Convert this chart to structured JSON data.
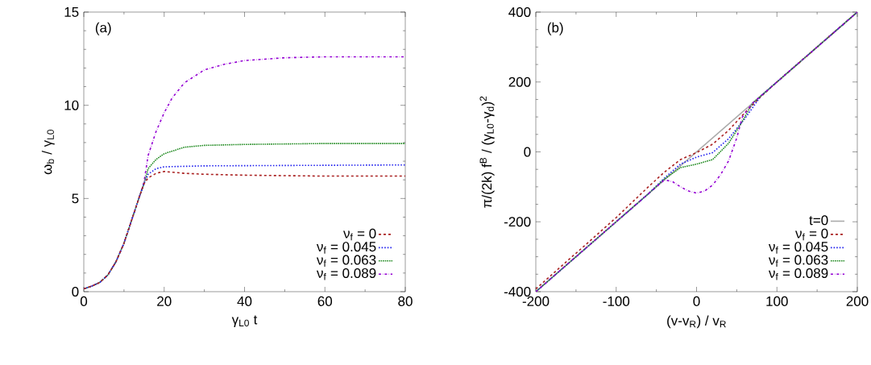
{
  "chart_data": [
    {
      "type": "line",
      "xlabel": "γ$_{L0}$ t",
      "ylabel": "ω$_{b}$ / γ$_{L0}$",
      "annotations": [
        "(a)"
      ],
      "xlim": [
        0,
        80
      ],
      "ylim": [
        0,
        15
      ],
      "xticks": [
        0,
        20,
        40,
        60,
        80
      ],
      "yticks": [
        0,
        5,
        10,
        15
      ],
      "legend": "bottom right",
      "grid": false,
      "series": [
        {
          "name": "ν$_{f}$ = 0",
          "color": "#aa2222",
          "line_style": "dashed",
          "x": [
            0,
            2,
            4,
            6,
            8,
            10,
            12,
            14,
            15,
            16,
            18,
            20,
            25,
            30,
            40,
            60,
            80
          ],
          "values": [
            0.15,
            0.3,
            0.5,
            0.9,
            1.6,
            2.6,
            3.9,
            5.2,
            5.8,
            6.1,
            6.35,
            6.45,
            6.35,
            6.3,
            6.25,
            6.2,
            6.2
          ]
        },
        {
          "name": "ν$_{f}$ = 0.045",
          "color": "#2222ee",
          "line_style": "dotted",
          "x": [
            0,
            2,
            4,
            6,
            8,
            10,
            12,
            14,
            15,
            16,
            18,
            20,
            30,
            80
          ],
          "values": [
            0.15,
            0.3,
            0.5,
            0.9,
            1.6,
            2.6,
            3.9,
            5.2,
            5.8,
            6.3,
            6.6,
            6.7,
            6.75,
            6.8
          ]
        },
        {
          "name": "ν$_{f}$ = 0.063",
          "color": "#228b22",
          "line_style": "densely dotted",
          "x": [
            0,
            2,
            4,
            6,
            8,
            10,
            12,
            14,
            15,
            16,
            18,
            20,
            25,
            30,
            40,
            60,
            80
          ],
          "values": [
            0.15,
            0.3,
            0.5,
            0.9,
            1.6,
            2.6,
            3.9,
            5.2,
            5.8,
            6.6,
            7.1,
            7.4,
            7.75,
            7.85,
            7.9,
            7.95,
            7.95
          ]
        },
        {
          "name": "ν$_{f}$ = 0.089",
          "color": "#9400d3",
          "line_style": "dash dot",
          "x": [
            0,
            2,
            4,
            6,
            8,
            10,
            12,
            14,
            15,
            16,
            18,
            20,
            22,
            25,
            30,
            35,
            40,
            50,
            60,
            80
          ],
          "values": [
            0.15,
            0.3,
            0.5,
            0.9,
            1.6,
            2.6,
            3.9,
            5.2,
            5.9,
            7.3,
            8.6,
            9.6,
            10.4,
            11.2,
            11.9,
            12.2,
            12.4,
            12.55,
            12.6,
            12.6
          ]
        }
      ]
    },
    {
      "type": "line",
      "xlabel": "(v-v$_{R}$) / v$_{R}$",
      "ylabel": "π/(2k) f$^{B}$ / (γ$_{L0}$-γ$_{d}$)$^{2}$",
      "annotations": [
        "(b)"
      ],
      "xlim": [
        -200,
        200
      ],
      "ylim": [
        -400,
        400
      ],
      "xticks": [
        -200,
        -100,
        0,
        100,
        200
      ],
      "yticks": [
        -400,
        -200,
        0,
        200,
        400
      ],
      "legend": "bottom right",
      "grid": false,
      "series": [
        {
          "name": "t=0",
          "color": "#aaaaaa",
          "line_style": "solid",
          "x": [
            -200,
            200
          ],
          "values": [
            -400,
            400
          ]
        },
        {
          "name": "ν$_{f}$ = 0",
          "color": "#aa2222",
          "line_style": "dashed",
          "x": [
            -200,
            -150,
            -100,
            -60,
            -40,
            -20,
            0,
            20,
            40,
            60,
            80,
            100,
            150,
            200
          ],
          "values": [
            -392,
            -290,
            -188,
            -100,
            -58,
            -22,
            -2,
            22,
            62,
            112,
            158,
            200,
            300,
            400
          ]
        },
        {
          "name": "ν$_{f}$ = 0.045",
          "color": "#2222ee",
          "line_style": "dotted",
          "x": [
            -200,
            -100,
            -60,
            -40,
            -20,
            0,
            20,
            40,
            60,
            80,
            100,
            200
          ],
          "values": [
            -400,
            -200,
            -120,
            -75,
            -35,
            -15,
            -2,
            38,
            95,
            160,
            200,
            400
          ]
        },
        {
          "name": "ν$_{f}$ = 0.063",
          "color": "#228b22",
          "line_style": "densely dotted",
          "x": [
            -200,
            -100,
            -60,
            -40,
            -20,
            0,
            20,
            40,
            55,
            70,
            100,
            200
          ],
          "values": [
            -400,
            -200,
            -120,
            -78,
            -45,
            -35,
            -22,
            25,
            80,
            140,
            200,
            400
          ]
        },
        {
          "name": "ν$_{f}$ = 0.089",
          "color": "#9400d3",
          "line_style": "dash dot",
          "x": [
            -200,
            -100,
            -60,
            -40,
            -30,
            -20,
            -10,
            0,
            10,
            20,
            30,
            40,
            50,
            57,
            70,
            100,
            200
          ],
          "values": [
            -400,
            -200,
            -120,
            -80,
            -85,
            -100,
            -112,
            -118,
            -112,
            -95,
            -65,
            -25,
            40,
            100,
            140,
            200,
            400
          ]
        }
      ]
    }
  ]
}
